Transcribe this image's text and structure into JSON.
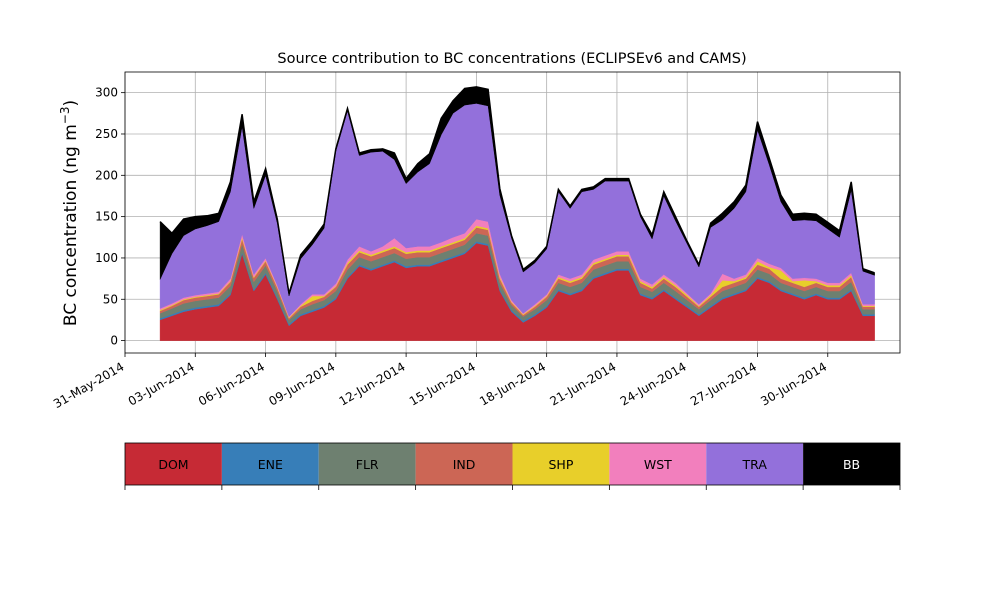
{
  "chart_data": {
    "type": "area",
    "title": "Source contribution to BC concentrations (ECLIPSEv6 and CAMS)",
    "ylabel_main": "BC concentration (ng m",
    "ylabel_exp": "−3",
    "ylabel_close": ")",
    "ylim": [
      -15,
      325
    ],
    "yticks": [
      0,
      50,
      100,
      150,
      200,
      250,
      300
    ],
    "xlim": [
      "2014-05-31T00:00",
      "2014-07-03T02:00"
    ],
    "xtick_labels": [
      "31-May-2014",
      "03-Jun-2014",
      "06-Jun-2014",
      "09-Jun-2014",
      "12-Jun-2014",
      "15-Jun-2014",
      "18-Jun-2014",
      "21-Jun-2014",
      "24-Jun-2014",
      "27-Jun-2014",
      "30-Jun-2014"
    ],
    "grid": true,
    "series_colors": {
      "DOM": "#c62a35",
      "ENE": "#377eb8",
      "FLR": "#6e8070",
      "IND": "#cc6655",
      "SHP": "#e8cf2a",
      "WST": "#f27fbd",
      "TRA": "#9370db",
      "BB": "#000000"
    },
    "legend": [
      {
        "name": "DOM",
        "color": "#c62a35",
        "text_color": "#000000"
      },
      {
        "name": "ENE",
        "color": "#377eb8",
        "text_color": "#000000"
      },
      {
        "name": "FLR",
        "color": "#6e8070",
        "text_color": "#000000"
      },
      {
        "name": "IND",
        "color": "#cc6655",
        "text_color": "#000000"
      },
      {
        "name": "SHP",
        "color": "#e8cf2a",
        "text_color": "#000000"
      },
      {
        "name": "WST",
        "color": "#f27fbd",
        "text_color": "#000000"
      },
      {
        "name": "TRA",
        "color": "#9370db",
        "text_color": "#000000"
      },
      {
        "name": "BB",
        "color": "#000000",
        "text_color": "#ffffff"
      }
    ],
    "x": [
      "2014-06-01T12:00",
      "2014-06-02T00:00",
      "2014-06-02T12:00",
      "2014-06-03T00:00",
      "2014-06-03T12:00",
      "2014-06-04T00:00",
      "2014-06-04T12:00",
      "2014-06-05T00:00",
      "2014-06-05T12:00",
      "2014-06-06T00:00",
      "2014-06-06T12:00",
      "2014-06-07T00:00",
      "2014-06-07T12:00",
      "2014-06-08T00:00",
      "2014-06-08T12:00",
      "2014-06-09T00:00",
      "2014-06-09T12:00",
      "2014-06-10T00:00",
      "2014-06-10T12:00",
      "2014-06-11T00:00",
      "2014-06-11T12:00",
      "2014-06-12T00:00",
      "2014-06-12T12:00",
      "2014-06-13T00:00",
      "2014-06-13T12:00",
      "2014-06-14T00:00",
      "2014-06-14T12:00",
      "2014-06-15T00:00",
      "2014-06-15T12:00",
      "2014-06-16T00:00",
      "2014-06-16T12:00",
      "2014-06-17T00:00",
      "2014-06-17T12:00",
      "2014-06-18T00:00",
      "2014-06-18T12:00",
      "2014-06-19T00:00",
      "2014-06-19T12:00",
      "2014-06-20T00:00",
      "2014-06-20T12:00",
      "2014-06-21T00:00",
      "2014-06-21T12:00",
      "2014-06-22T00:00",
      "2014-06-22T12:00",
      "2014-06-23T00:00",
      "2014-06-23T12:00",
      "2014-06-24T00:00",
      "2014-06-24T12:00",
      "2014-06-25T00:00",
      "2014-06-25T12:00",
      "2014-06-26T00:00",
      "2014-06-26T12:00",
      "2014-06-27T00:00",
      "2014-06-27T12:00",
      "2014-06-28T00:00",
      "2014-06-28T12:00",
      "2014-06-29T00:00",
      "2014-06-29T12:00",
      "2014-06-30T00:00",
      "2014-06-30T12:00",
      "2014-07-01T00:00",
      "2014-07-01T12:00",
      "2014-07-02T00:00"
    ],
    "series": [
      {
        "name": "DOM",
        "values": [
          25,
          30,
          35,
          38,
          40,
          42,
          55,
          105,
          60,
          80,
          50,
          18,
          30,
          35,
          40,
          50,
          75,
          90,
          85,
          90,
          95,
          88,
          90,
          90,
          95,
          100,
          105,
          118,
          115,
          60,
          35,
          22,
          30,
          40,
          60,
          55,
          60,
          75,
          80,
          85,
          85,
          55,
          50,
          60,
          50,
          40,
          30,
          40,
          50,
          55,
          60,
          75,
          70,
          60,
          55,
          50,
          55,
          50,
          50,
          60,
          30,
          30
        ]
      },
      {
        "name": "ENE",
        "values": [
          2,
          2,
          2,
          2,
          2,
          2,
          2,
          2,
          2,
          2,
          2,
          2,
          2,
          2,
          2,
          2,
          2,
          2,
          2,
          2,
          2,
          2,
          2,
          2,
          2,
          2,
          2,
          2,
          2,
          2,
          2,
          2,
          2,
          2,
          2,
          2,
          2,
          2,
          2,
          2,
          2,
          2,
          2,
          2,
          2,
          2,
          2,
          2,
          2,
          2,
          2,
          2,
          2,
          2,
          2,
          2,
          2,
          2,
          2,
          2,
          2,
          2
        ]
      },
      {
        "name": "FLR",
        "values": [
          6,
          7,
          8,
          8,
          8,
          8,
          9,
          10,
          9,
          9,
          8,
          5,
          6,
          7,
          7,
          8,
          9,
          9,
          9,
          9,
          9,
          9,
          9,
          9,
          9,
          9,
          9,
          10,
          10,
          8,
          6,
          5,
          6,
          7,
          8,
          8,
          8,
          9,
          9,
          9,
          9,
          8,
          7,
          8,
          8,
          7,
          6,
          7,
          8,
          8,
          8,
          9,
          9,
          8,
          8,
          8,
          8,
          8,
          8,
          9,
          6,
          6
        ]
      },
      {
        "name": "IND",
        "values": [
          3,
          3,
          4,
          4,
          4,
          4,
          5,
          6,
          5,
          5,
          4,
          2,
          3,
          4,
          4,
          5,
          6,
          6,
          6,
          6,
          6,
          6,
          6,
          6,
          6,
          6,
          6,
          7,
          7,
          5,
          3,
          2,
          3,
          4,
          5,
          5,
          5,
          6,
          6,
          6,
          6,
          5,
          4,
          5,
          5,
          4,
          3,
          4,
          5,
          5,
          5,
          6,
          6,
          5,
          5,
          5,
          5,
          5,
          5,
          6,
          3,
          3
        ]
      },
      {
        "name": "SHP",
        "values": [
          1,
          1,
          1,
          1,
          1,
          1,
          1,
          2,
          1,
          1,
          1,
          1,
          1,
          6,
          1,
          1,
          2,
          2,
          2,
          2,
          2,
          2,
          2,
          2,
          2,
          2,
          2,
          2,
          2,
          2,
          1,
          1,
          1,
          1,
          2,
          2,
          2,
          2,
          2,
          2,
          2,
          2,
          2,
          2,
          2,
          2,
          1,
          2,
          8,
          2,
          2,
          4,
          2,
          10,
          2,
          8,
          2,
          2,
          2,
          2,
          1,
          1
        ]
      },
      {
        "name": "WST",
        "values": [
          2,
          2,
          2,
          2,
          2,
          2,
          3,
          4,
          3,
          3,
          2,
          1,
          2,
          2,
          2,
          3,
          4,
          5,
          4,
          5,
          10,
          5,
          5,
          5,
          5,
          6,
          6,
          8,
          8,
          4,
          2,
          1,
          2,
          2,
          3,
          3,
          3,
          4,
          4,
          4,
          4,
          3,
          3,
          3,
          3,
          2,
          2,
          2,
          8,
          3,
          3,
          4,
          4,
          3,
          3,
          3,
          3,
          3,
          3,
          3,
          2,
          2
        ]
      },
      {
        "name": "TRA",
        "values": [
          35,
          60,
          75,
          80,
          82,
          85,
          105,
          130,
          80,
          100,
          75,
          25,
          55,
          60,
          80,
          160,
          180,
          110,
          120,
          115,
          95,
          78,
          90,
          100,
          130,
          150,
          155,
          140,
          140,
          95,
          75,
          50,
          50,
          55,
          100,
          85,
          100,
          85,
          90,
          85,
          85,
          75,
          55,
          95,
          75,
          60,
          45,
          80,
          65,
          85,
          100,
          155,
          120,
          80,
          70,
          70,
          70,
          65,
          55,
          100,
          40,
          35
        ]
      },
      {
        "name": "BB",
        "values": [
          70,
          25,
          20,
          15,
          12,
          10,
          12,
          15,
          8,
          8,
          5,
          3,
          5,
          5,
          5,
          3,
          3,
          3,
          3,
          3,
          8,
          6,
          10,
          12,
          20,
          15,
          20,
          20,
          20,
          8,
          3,
          3,
          3,
          3,
          3,
          3,
          3,
          3,
          3,
          3,
          3,
          3,
          5,
          5,
          5,
          3,
          3,
          5,
          8,
          8,
          8,
          10,
          8,
          8,
          8,
          8,
          8,
          8,
          8,
          10,
          3,
          3
        ]
      }
    ]
  }
}
